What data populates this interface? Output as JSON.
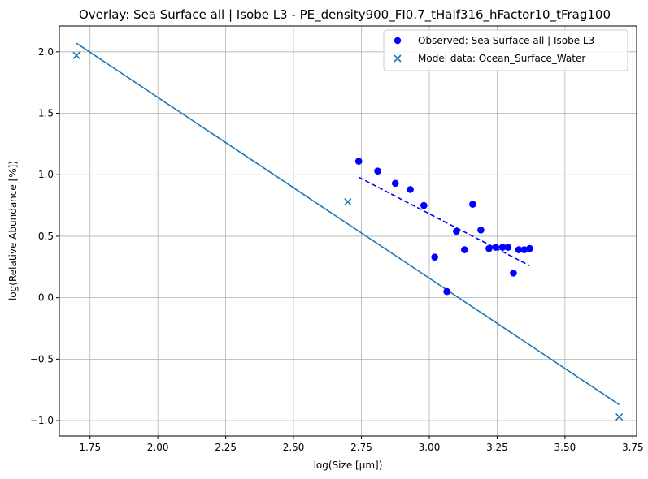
{
  "chart_data": {
    "type": "scatter",
    "title": "Overlay: Sea Surface all | Isobe L3 - PE_density900_FI0.7_tHalf316_hFactor10_tFrag100",
    "xlabel": "log(Size [μm])",
    "ylabel": "log(Relative Abundance [%])",
    "xlim": [
      1.637,
      3.764
    ],
    "ylim": [
      -1.125,
      2.21
    ],
    "grid": true,
    "legend_position": "top-right",
    "x_ticks": [
      1.75,
      2.0,
      2.25,
      2.5,
      2.75,
      3.0,
      3.25,
      3.5,
      3.75
    ],
    "x_tick_labels": [
      "1.75",
      "2.00",
      "2.25",
      "2.50",
      "2.75",
      "3.00",
      "3.25",
      "3.50",
      "3.75"
    ],
    "y_ticks": [
      -1.0,
      -0.5,
      0.0,
      0.5,
      1.0,
      1.5,
      2.0
    ],
    "y_tick_labels": [
      "−1.0",
      "−0.5",
      "0.0",
      "0.5",
      "1.0",
      "1.5",
      "2.0"
    ],
    "series": [
      {
        "name": "Observed: Sea Surface all | Isobe L3",
        "kind": "scatter",
        "marker": "circle",
        "color": "#0000ff",
        "x": [
          2.74,
          2.81,
          2.875,
          2.93,
          2.98,
          3.02,
          3.065,
          3.1,
          3.13,
          3.16,
          3.19,
          3.22,
          3.245,
          3.27,
          3.29,
          3.31,
          3.33,
          3.35,
          3.37
        ],
        "y": [
          1.11,
          1.03,
          0.93,
          0.88,
          0.75,
          0.33,
          0.05,
          0.54,
          0.39,
          0.76,
          0.55,
          0.4,
          0.41,
          0.41,
          0.41,
          0.2,
          0.39,
          0.39,
          0.4
        ]
      },
      {
        "name": "Model data: Ocean_Surface_Water",
        "kind": "scatter",
        "marker": "x",
        "color": "#1f77b4",
        "x": [
          1.7,
          2.7,
          3.7
        ],
        "y": [
          1.97,
          0.78,
          -0.97
        ]
      }
    ],
    "lines": [
      {
        "kind": "solid",
        "color": "#1f77b4",
        "x": [
          1.7,
          3.7
        ],
        "y": [
          2.07,
          -0.87
        ]
      },
      {
        "kind": "dashed",
        "color": "#0000ff",
        "x": [
          2.74,
          3.37
        ],
        "y": [
          0.98,
          0.26
        ]
      }
    ]
  }
}
